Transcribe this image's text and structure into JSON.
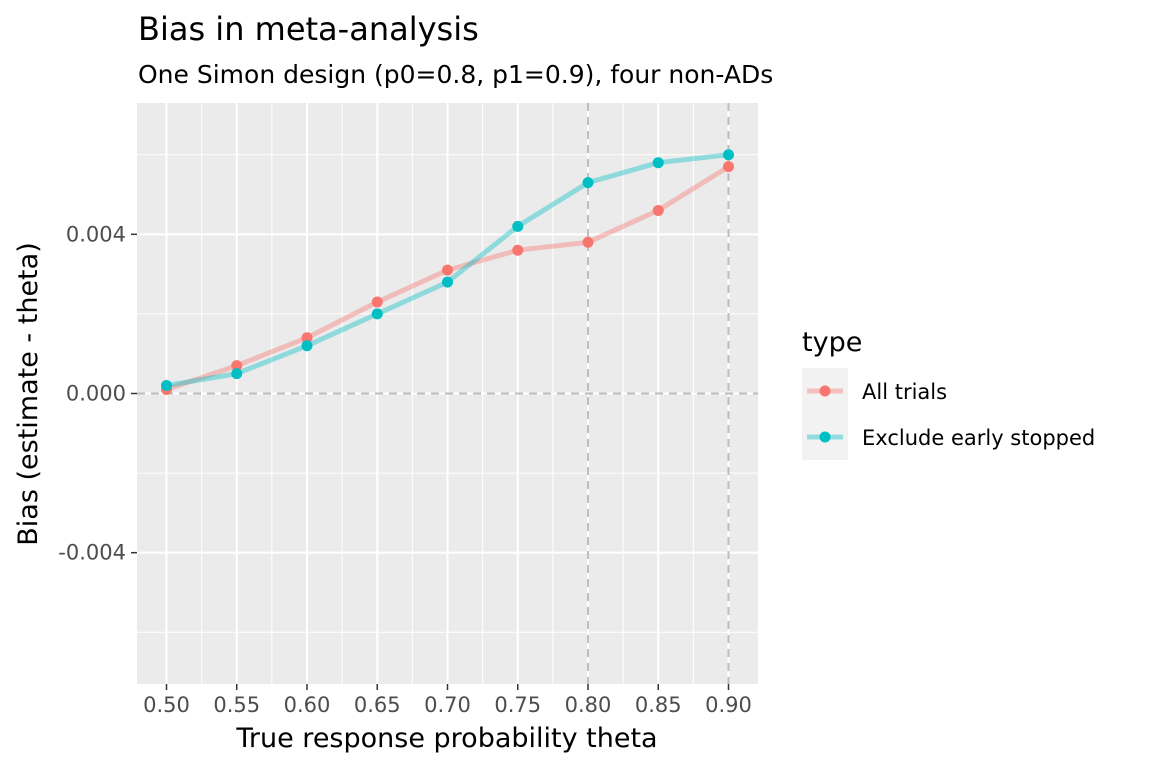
{
  "chart_data": {
    "type": "line",
    "title": "Bias in meta-analysis",
    "subtitle": "One Simon design (p0=0.8, p1=0.9), four non-ADs",
    "xlabel": "True response probability theta",
    "ylabel": "Bias (estimate - theta)",
    "xlim": [
      0.479,
      0.921
    ],
    "ylim": [
      -0.0073,
      0.0073
    ],
    "x_ticks": [
      0.5,
      0.55,
      0.6,
      0.65,
      0.7,
      0.75,
      0.8,
      0.85,
      0.9
    ],
    "x_tick_labels": [
      "0.50",
      "0.55",
      "0.60",
      "0.65",
      "0.70",
      "0.75",
      "0.80",
      "0.85",
      "0.90"
    ],
    "y_ticks": [
      -0.004,
      0.0,
      0.004
    ],
    "y_tick_labels": [
      "-0.004",
      "0.000",
      "0.004"
    ],
    "y_minor_ticks": [
      -0.006,
      -0.002,
      0.002,
      0.006
    ],
    "hline": 0.0,
    "vlines": [
      0.8,
      0.9
    ],
    "grid": true,
    "legend_position": "right",
    "legend_title": "type",
    "x": [
      0.5,
      0.55,
      0.6,
      0.65,
      0.7,
      0.75,
      0.8,
      0.85,
      0.9
    ],
    "series": [
      {
        "name": "All trials",
        "color": "#F8766D",
        "values": [
          0.0001,
          0.0007,
          0.0014,
          0.0023,
          0.0031,
          0.0036,
          0.0038,
          0.0046,
          0.0057
        ]
      },
      {
        "name": "Exclude early stopped",
        "color": "#00BFC4",
        "values": [
          0.0002,
          0.0005,
          0.0012,
          0.002,
          0.0028,
          0.0042,
          0.0053,
          0.0058,
          0.006
        ]
      }
    ]
  }
}
